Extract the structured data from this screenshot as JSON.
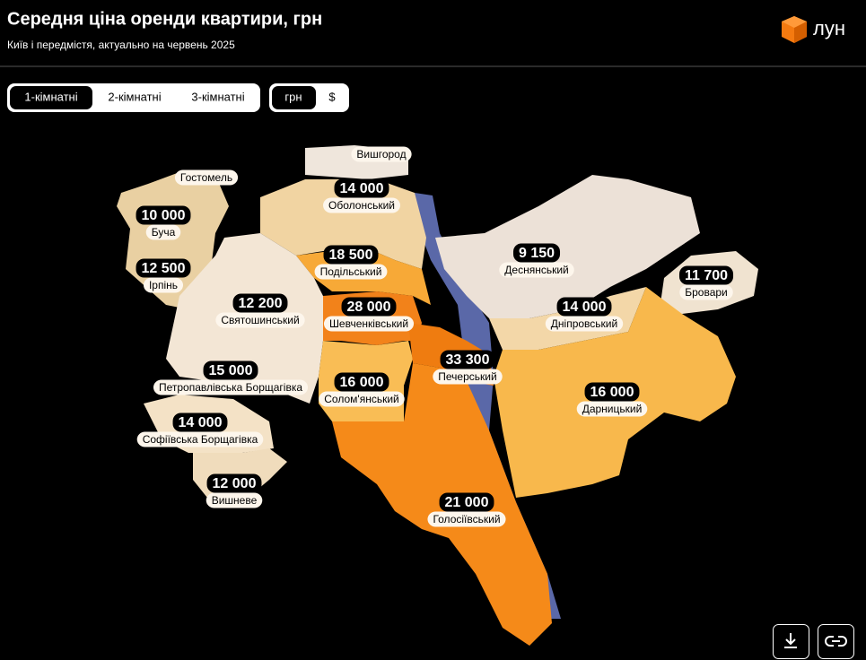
{
  "header": {
    "title": "Середня ціна оренди квартири, грн",
    "subtitle": "Київ і передмістя, актуально на червень 2025",
    "logo": "лун"
  },
  "tabs": {
    "rooms": [
      "1-кімнатні",
      "2-кімнатні",
      "3-кімнатні"
    ],
    "currency": [
      "грн",
      "$"
    ]
  },
  "regions": [
    {
      "name": "Вишгород"
    },
    {
      "name": "Гостомель"
    },
    {
      "name": "Оболонський",
      "price": "14 000"
    },
    {
      "name": "Буча",
      "price": "10 000"
    },
    {
      "name": "Ірпінь",
      "price": "12 500"
    },
    {
      "name": "Подільський",
      "price": "18 500"
    },
    {
      "name": "Деснянський",
      "price": "9 150"
    },
    {
      "name": "Бровари",
      "price": "11 700"
    },
    {
      "name": "Святошинський",
      "price": "12 200"
    },
    {
      "name": "Шевченківський",
      "price": "28 000"
    },
    {
      "name": "Дніпровський",
      "price": "14 000"
    },
    {
      "name": "Печерський",
      "price": "33 300"
    },
    {
      "name": "Петропавлівська Борщагівка",
      "price": "15 000"
    },
    {
      "name": "Солом'янський",
      "price": "16 000"
    },
    {
      "name": "Дарницький",
      "price": "16 000"
    },
    {
      "name": "Софіївська Борщагівка",
      "price": "14 000"
    },
    {
      "name": "Вишневе",
      "price": "12 000"
    },
    {
      "name": "Голосіївський",
      "price": "21 000"
    }
  ]
}
